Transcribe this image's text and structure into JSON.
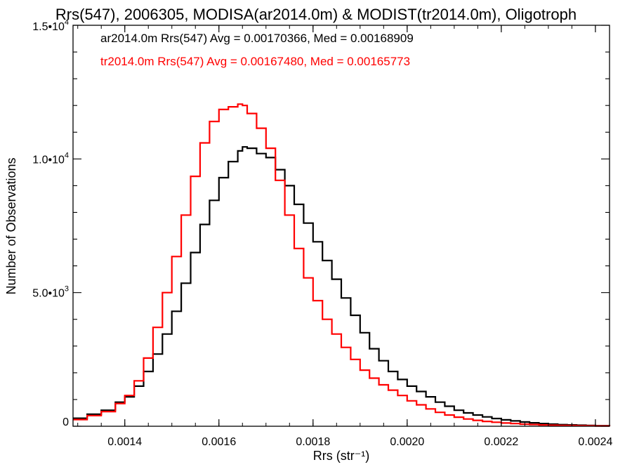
{
  "chart_data": {
    "type": "line",
    "title": "Rrs(547), 2006305, MODISA(ar2014.0m) & MODIST(tr2014.0m), Oligotroph",
    "xlabel": "Rrs (str⁻¹)",
    "ylabel": "Number of Observations",
    "xlim": [
      0.00129,
      0.00243
    ],
    "ylim": [
      0,
      15000
    ],
    "xticks": [
      {
        "value": 0.0014,
        "label": "0.0014"
      },
      {
        "value": 0.0016,
        "label": "0.0016"
      },
      {
        "value": 0.0018,
        "label": "0.0018"
      },
      {
        "value": 0.002,
        "label": "0.0020"
      },
      {
        "value": 0.0022,
        "label": "0.0022"
      },
      {
        "value": 0.0024,
        "label": "0.0024"
      }
    ],
    "yticks": [
      {
        "value": 0,
        "label": "0",
        "sup": ""
      },
      {
        "value": 5000,
        "label": "5.0•10",
        "sup": "3"
      },
      {
        "value": 10000,
        "label": "1.0•10",
        "sup": "4"
      },
      {
        "value": 15000,
        "label": "1.5•10",
        "sup": "4"
      }
    ],
    "legend": [
      {
        "text": "ar2014.0m Rrs(547) Avg = 0.00170366, Med = 0.00168909",
        "color": "#000000"
      },
      {
        "text": "tr2014.0m Rrs(547) Avg = 0.00167480, Med = 0.00165773",
        "color": "#ff0000"
      }
    ],
    "series": [
      {
        "color": "#000000",
        "step": true,
        "x": [
          0.00129,
          0.00132,
          0.00135,
          0.00138,
          0.0014,
          0.00142,
          0.00144,
          0.00146,
          0.00148,
          0.0015,
          0.00152,
          0.00154,
          0.00156,
          0.00158,
          0.0016,
          0.00162,
          0.00164,
          0.00165,
          0.00166,
          0.00168,
          0.0017,
          0.00172,
          0.00174,
          0.00176,
          0.00178,
          0.0018,
          0.00182,
          0.00184,
          0.00186,
          0.00188,
          0.0019,
          0.00192,
          0.00194,
          0.00196,
          0.00198,
          0.002,
          0.00202,
          0.00204,
          0.00206,
          0.00208,
          0.0021,
          0.00212,
          0.00214,
          0.00216,
          0.00218,
          0.0022,
          0.00222,
          0.00224,
          0.00226,
          0.00228,
          0.0023,
          0.00232,
          0.00234,
          0.00236,
          0.00238,
          0.0024,
          0.00243
        ],
        "y": [
          300,
          450,
          600,
          900,
          1100,
          1500,
          2050,
          2700,
          3450,
          4300,
          5350,
          6500,
          7550,
          8450,
          9300,
          9900,
          10300,
          10450,
          10400,
          10200,
          10050,
          9600,
          9000,
          8300,
          7600,
          6900,
          6200,
          5500,
          4800,
          4150,
          3500,
          2900,
          2450,
          2050,
          1750,
          1500,
          1300,
          1100,
          900,
          750,
          600,
          500,
          420,
          350,
          290,
          240,
          200,
          160,
          130,
          100,
          80,
          60,
          50,
          40,
          30,
          20,
          15
        ]
      },
      {
        "color": "#ff0000",
        "step": true,
        "x": [
          0.00129,
          0.00132,
          0.00135,
          0.00138,
          0.0014,
          0.00142,
          0.00144,
          0.00146,
          0.00148,
          0.0015,
          0.00152,
          0.00154,
          0.00156,
          0.00158,
          0.0016,
          0.00162,
          0.00164,
          0.00165,
          0.00166,
          0.00168,
          0.0017,
          0.00172,
          0.00174,
          0.00176,
          0.00178,
          0.0018,
          0.00182,
          0.00184,
          0.00186,
          0.00188,
          0.0019,
          0.00192,
          0.00194,
          0.00196,
          0.00198,
          0.002,
          0.00202,
          0.00204,
          0.00206,
          0.00208,
          0.0021,
          0.00212,
          0.00214,
          0.00216,
          0.00218,
          0.0022,
          0.00222,
          0.00224,
          0.00226,
          0.00228,
          0.0023,
          0.00232,
          0.00234,
          0.00236,
          0.00238,
          0.0024,
          0.00243
        ],
        "y": [
          250,
          400,
          550,
          850,
          1150,
          1700,
          2550,
          3700,
          5000,
          6350,
          7900,
          9350,
          10600,
          11400,
          11850,
          11950,
          12050,
          12000,
          11700,
          11150,
          10400,
          9200,
          7900,
          6650,
          5550,
          4700,
          4000,
          3450,
          2950,
          2500,
          2100,
          1800,
          1550,
          1350,
          1150,
          950,
          800,
          650,
          520,
          420,
          340,
          270,
          220,
          180,
          150,
          120,
          100,
          80,
          65,
          50,
          40,
          30,
          25,
          20,
          15,
          10,
          8
        ]
      }
    ]
  }
}
